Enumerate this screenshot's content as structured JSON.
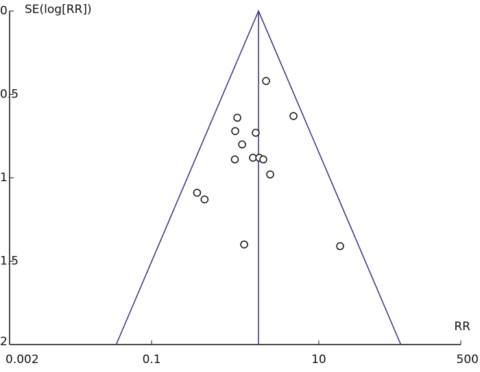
{
  "chart_data": {
    "type": "scatter",
    "y_label": "SE(log[RR])",
    "x_label": "RR",
    "x_log": true,
    "y_inverted": true,
    "xlim": [
      0.002,
      500
    ],
    "xticks": [
      0.002,
      0.1,
      10,
      500
    ],
    "ylim": [
      0,
      2
    ],
    "yticks": [
      0,
      0.5,
      1,
      1.5,
      2
    ],
    "pooled_rr": 1.9,
    "funnel_color": "#3b2a86",
    "point_color": "#111111",
    "x": [
      2.34,
      4.98,
      1.06,
      1.0,
      1.76,
      1.21,
      0.99,
      1.63,
      1.94,
      2.17,
      2.62,
      0.35,
      0.43,
      1.28,
      18.0
    ],
    "y": [
      0.42,
      0.63,
      0.64,
      0.72,
      0.73,
      0.8,
      0.89,
      0.88,
      0.88,
      0.89,
      0.98,
      1.09,
      1.13,
      1.4,
      1.41
    ]
  }
}
